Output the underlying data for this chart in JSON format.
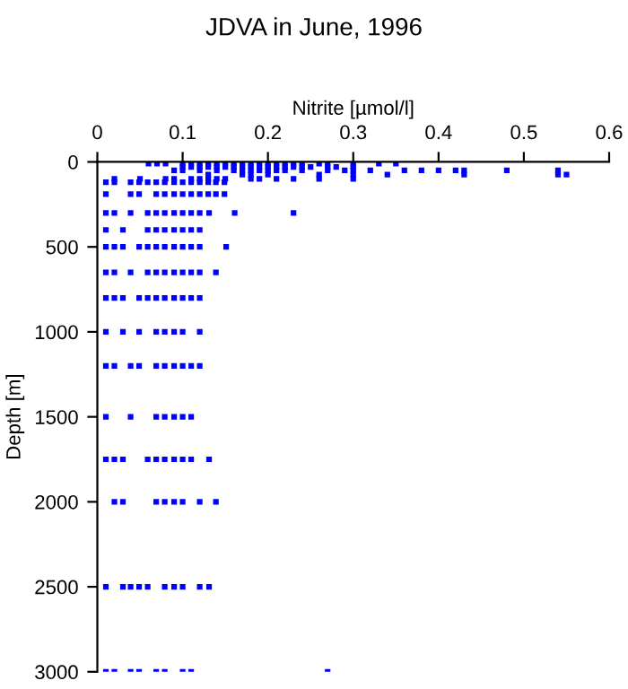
{
  "chart_data": {
    "type": "scatter",
    "title": "JDVA in June, 1996",
    "xlabel": "Nitrite [µmol/l]",
    "ylabel": "Depth [m]",
    "xlim": [
      0,
      0.6
    ],
    "xticks": [
      0,
      0.1,
      0.2,
      0.3,
      0.4,
      0.5,
      0.6
    ],
    "ylim": [
      3000,
      0
    ],
    "yticks": [
      0,
      500,
      1000,
      1500,
      2000,
      2500,
      3000
    ],
    "grid": false,
    "legend": false,
    "marker": "square",
    "series": [
      {
        "color": "#0000ff",
        "x": [
          0.06,
          0.07,
          0.08,
          0.1,
          0.11,
          0.12,
          0.13,
          0.14,
          0.15,
          0.16,
          0.17,
          0.18,
          0.19,
          0.2,
          0.21,
          0.22,
          0.23,
          0.24,
          0.26,
          0.27,
          0.3,
          0.33,
          0.35,
          0.1,
          0.11,
          0.12,
          0.13,
          0.14,
          0.15,
          0.16,
          0.17,
          0.18,
          0.19,
          0.2,
          0.21,
          0.22,
          0.23,
          0.24,
          0.25,
          0.27,
          0.28,
          0.3,
          0.09,
          0.1,
          0.12,
          0.14,
          0.16,
          0.17,
          0.18,
          0.19,
          0.2,
          0.21,
          0.22,
          0.24,
          0.27,
          0.29,
          0.3,
          0.32,
          0.36,
          0.38,
          0.4,
          0.42,
          0.43,
          0.48,
          0.54,
          0.13,
          0.17,
          0.18,
          0.2,
          0.26,
          0.3,
          0.34,
          0.43,
          0.54,
          0.55,
          0.02,
          0.05,
          0.08,
          0.09,
          0.11,
          0.12,
          0.13,
          0.14,
          0.15,
          0.18,
          0.19,
          0.21,
          0.23,
          0.26,
          0.3,
          0.01,
          0.02,
          0.039,
          0.049,
          0.059,
          0.069,
          0.079,
          0.09,
          0.1,
          0.11,
          0.12,
          0.13,
          0.139,
          0.149,
          0.01,
          0.039,
          0.049,
          0.069,
          0.079,
          0.09,
          0.1,
          0.11,
          0.12,
          0.13,
          0.139,
          0.149,
          0.01,
          0.02,
          0.039,
          0.059,
          0.069,
          0.079,
          0.09,
          0.1,
          0.11,
          0.12,
          0.131,
          0.161,
          0.23,
          0.01,
          0.03,
          0.059,
          0.069,
          0.079,
          0.09,
          0.1,
          0.11,
          0.12,
          0.01,
          0.02,
          0.03,
          0.049,
          0.059,
          0.069,
          0.079,
          0.09,
          0.1,
          0.11,
          0.12,
          0.151,
          0.01,
          0.02,
          0.039,
          0.059,
          0.069,
          0.079,
          0.09,
          0.1,
          0.11,
          0.12,
          0.139,
          0.01,
          0.02,
          0.03,
          0.049,
          0.059,
          0.069,
          0.079,
          0.09,
          0.1,
          0.11,
          0.12,
          0.01,
          0.03,
          0.049,
          0.069,
          0.079,
          0.09,
          0.1,
          0.12,
          0.01,
          0.02,
          0.039,
          0.049,
          0.069,
          0.079,
          0.09,
          0.1,
          0.11,
          0.12,
          0.01,
          0.039,
          0.069,
          0.079,
          0.09,
          0.1,
          0.11,
          0.01,
          0.02,
          0.03,
          0.059,
          0.069,
          0.079,
          0.09,
          0.1,
          0.11,
          0.131,
          0.02,
          0.03,
          0.069,
          0.079,
          0.09,
          0.1,
          0.12,
          0.139,
          0.01,
          0.03,
          0.039,
          0.049,
          0.059,
          0.079,
          0.09,
          0.1,
          0.12,
          0.131,
          0.01,
          0.02,
          0.039,
          0.049,
          0.069,
          0.079,
          0.1,
          0.11,
          0.27
        ],
        "values": [
          10,
          10,
          10,
          10,
          10,
          10,
          10,
          10,
          10,
          10,
          10,
          10,
          10,
          10,
          10,
          10,
          10,
          10,
          10,
          10,
          10,
          10,
          10,
          30,
          30,
          30,
          30,
          30,
          30,
          30,
          30,
          30,
          30,
          30,
          30,
          30,
          30,
          30,
          30,
          30,
          30,
          30,
          50,
          50,
          50,
          50,
          50,
          50,
          50,
          50,
          50,
          50,
          50,
          50,
          50,
          50,
          50,
          50,
          50,
          50,
          50,
          50,
          50,
          50,
          50,
          75,
          75,
          75,
          75,
          75,
          75,
          75,
          75,
          75,
          75,
          100,
          100,
          100,
          100,
          100,
          100,
          100,
          100,
          100,
          100,
          100,
          100,
          100,
          100,
          100,
          120,
          120,
          120,
          120,
          120,
          120,
          120,
          120,
          120,
          120,
          120,
          120,
          120,
          120,
          190,
          190,
          190,
          190,
          190,
          190,
          190,
          190,
          190,
          190,
          190,
          190,
          300,
          300,
          300,
          300,
          300,
          300,
          300,
          300,
          300,
          300,
          300,
          300,
          300,
          400,
          400,
          400,
          400,
          400,
          400,
          400,
          400,
          400,
          500,
          500,
          500,
          500,
          500,
          500,
          500,
          500,
          500,
          500,
          500,
          500,
          650,
          650,
          650,
          650,
          650,
          650,
          650,
          650,
          650,
          650,
          650,
          800,
          800,
          800,
          800,
          800,
          800,
          800,
          800,
          800,
          800,
          800,
          1000,
          1000,
          1000,
          1000,
          1000,
          1000,
          1000,
          1000,
          1200,
          1200,
          1200,
          1200,
          1200,
          1200,
          1200,
          1200,
          1200,
          1200,
          1500,
          1500,
          1500,
          1500,
          1500,
          1500,
          1500,
          1750,
          1750,
          1750,
          1750,
          1750,
          1750,
          1750,
          1750,
          1750,
          1750,
          2000,
          2000,
          2000,
          2000,
          2000,
          2000,
          2000,
          2000,
          2500,
          2500,
          2500,
          2500,
          2500,
          2500,
          2500,
          2500,
          2500,
          2500,
          3000,
          3000,
          3000,
          3000,
          3000,
          3000,
          3000,
          3000,
          3000
        ]
      }
    ]
  }
}
